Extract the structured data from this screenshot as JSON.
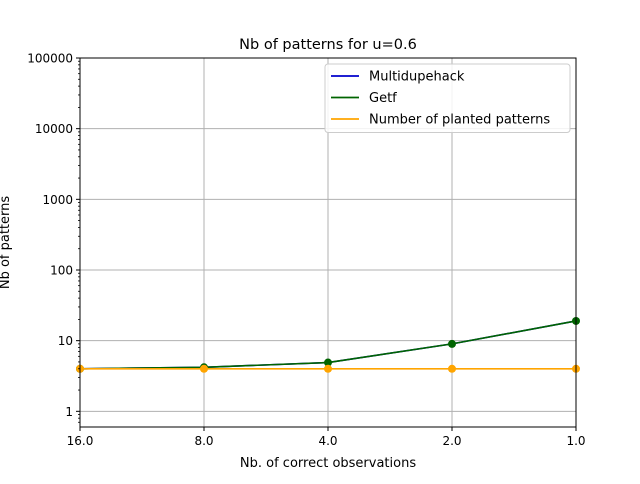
{
  "chart_data": {
    "type": "line",
    "title": "Nb of patterns for u=0.6",
    "xlabel": "Nb. of correct observations",
    "ylabel": "Nb of patterns",
    "x_scale": "log",
    "x_reversed": true,
    "x_ticks": [
      "16.0",
      "8.0",
      "4.0",
      "2.0",
      "1.0"
    ],
    "x": [
      16,
      8,
      4,
      2,
      1
    ],
    "xlim": [
      16,
      1
    ],
    "y_scale": "log",
    "y_ticks": [
      "1",
      "10",
      "100",
      "1000",
      "10000",
      "100000"
    ],
    "ylim": [
      0.6,
      100000
    ],
    "grid": true,
    "legend_position": "top-right",
    "series": [
      {
        "name": "Multidupehack",
        "color": "#0000cc",
        "values": [
          4,
          4.2,
          4.9,
          9,
          19
        ],
        "markers": false
      },
      {
        "name": "Getf",
        "color": "#006400",
        "values": [
          4,
          4.2,
          4.9,
          9,
          19
        ],
        "markers": true
      },
      {
        "name": "Number of planted patterns",
        "color": "#ffa500",
        "values": [
          4,
          4,
          4,
          4,
          4
        ],
        "markers": true
      }
    ]
  }
}
